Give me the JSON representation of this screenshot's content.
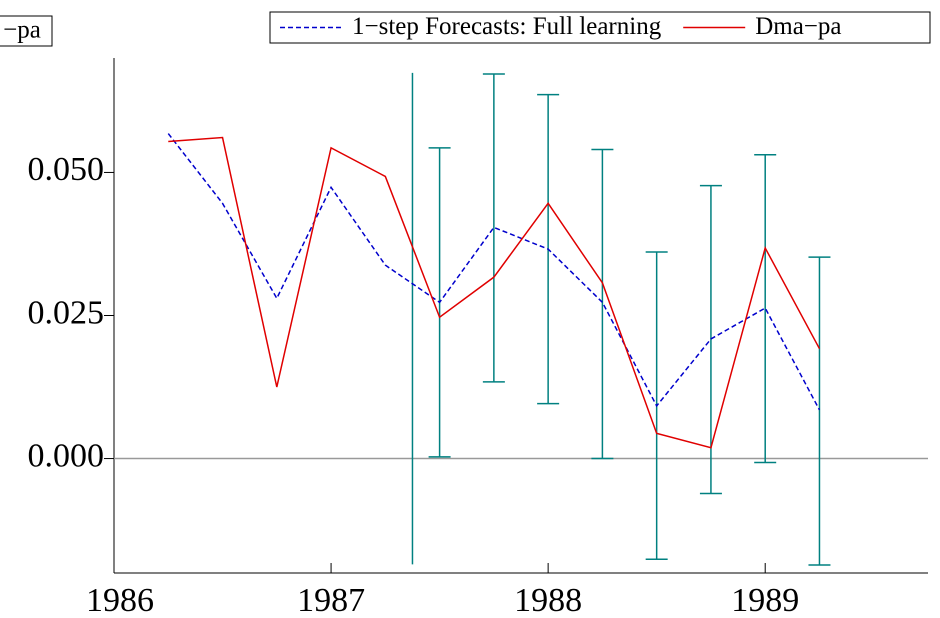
{
  "chart_data": {
    "type": "line",
    "corner_label": "−pa",
    "xlim": [
      1986,
      1989.75
    ],
    "xticks": [
      1986,
      1987,
      1988,
      1989
    ],
    "ylim": [
      -0.02,
      0.07
    ],
    "yticks": [
      {
        "value": 0,
        "label": "0.000"
      },
      {
        "value": 0.025,
        "label": "0.025"
      },
      {
        "value": 0.05,
        "label": "0.050"
      }
    ],
    "zero_line": true,
    "legend": "top-right",
    "series": [
      {
        "name": "1−step Forecasts: Full learning",
        "color": "#0000cc",
        "dashed": true,
        "x": [
          1986.25,
          1986.5,
          1986.75,
          1987,
          1987.25,
          1987.5,
          1987.75,
          1988,
          1988.25,
          1988.5,
          1988.75,
          1989,
          1989.25
        ],
        "values": [
          0.0568,
          0.0446,
          0.028,
          0.0474,
          0.0338,
          0.0273,
          0.0404,
          0.0366,
          0.0273,
          0.0092,
          0.0209,
          0.0263,
          0.0085
        ]
      },
      {
        "name": "Dma−pa",
        "color": "#e00000",
        "dashed": false,
        "x": [
          1986.25,
          1986.5,
          1986.75,
          1987,
          1987.25,
          1987.5,
          1987.75,
          1988,
          1988.25,
          1988.5,
          1988.75,
          1989,
          1989.25
        ],
        "values": [
          0.0554,
          0.0561,
          0.0125,
          0.0543,
          0.0493,
          0.0247,
          0.0317,
          0.0446,
          0.0307,
          0.0044,
          0.0019,
          0.0368,
          0.0192
        ]
      }
    ],
    "intervals": {
      "color": "#008080",
      "x": [
        1987.375,
        1987.5,
        1987.75,
        1988,
        1988.25,
        1988.5,
        1988.75,
        1989,
        1989.25
      ],
      "low": [
        -0.0185,
        0.0003,
        0.0134,
        0.0096,
        0.0,
        -0.0176,
        -0.0061,
        -0.0007,
        -0.0186
      ],
      "high": [
        0.0674,
        0.0543,
        0.0672,
        0.0636,
        0.054,
        0.0361,
        0.0477,
        0.0531,
        0.0352
      ]
    }
  }
}
